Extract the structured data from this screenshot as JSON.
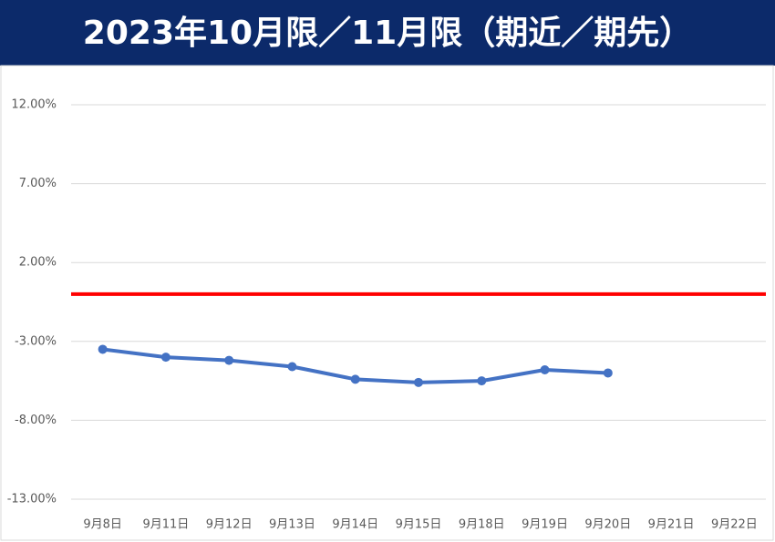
{
  "chart_data": {
    "type": "line",
    "title": "2023年10月限／11月限（期近／期先）",
    "categories": [
      "9月8日",
      "9月11日",
      "9月12日",
      "9月13日",
      "9月14日",
      "9月15日",
      "9月18日",
      "9月19日",
      "9月20日",
      "9月21日",
      "9月22日"
    ],
    "series": [
      {
        "color": "#4472c4",
        "values": [
          -3.5,
          -4.0,
          -4.2,
          -4.6,
          -5.4,
          -5.6,
          -5.5,
          -4.8,
          -5.0,
          null,
          null
        ]
      }
    ],
    "reference_lines": [
      {
        "value": 0,
        "color": "#ff0000"
      }
    ],
    "ylim": [
      -13,
      12
    ],
    "yticks": [
      {
        "value": 12,
        "label": "12.00%"
      },
      {
        "value": 7,
        "label": "7.00%"
      },
      {
        "value": 2,
        "label": "2.00%"
      },
      {
        "value": -3,
        "label": "-3.00%"
      },
      {
        "value": -8,
        "label": "-8.00%"
      },
      {
        "value": -13,
        "label": "-13.00%"
      }
    ],
    "grid": true
  }
}
